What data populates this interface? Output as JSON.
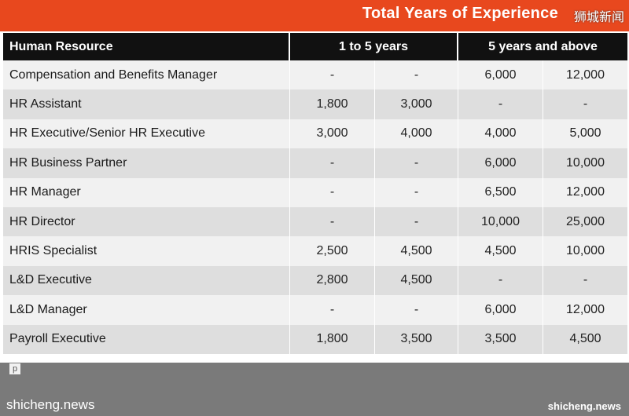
{
  "banner": {
    "title": "Total Years of Experience",
    "watermark": "狮城新闻"
  },
  "table": {
    "headers": [
      "Human Resource",
      "1 to 5 years",
      "5 years and above"
    ],
    "rows": [
      {
        "role": "Compensation and Benefits Manager",
        "v": [
          "-",
          "-",
          "6,000",
          "12,000"
        ]
      },
      {
        "role": "HR Assistant",
        "v": [
          "1,800",
          "3,000",
          "-",
          "-"
        ]
      },
      {
        "role": "HR Executive/Senior HR Executive",
        "v": [
          "3,000",
          "4,000",
          "4,000",
          "5,000"
        ]
      },
      {
        "role": "HR Business Partner",
        "v": [
          "-",
          "-",
          "6,000",
          "10,000"
        ]
      },
      {
        "role": "HR Manager",
        "v": [
          "-",
          "-",
          "6,500",
          "12,000"
        ]
      },
      {
        "role": "HR Director",
        "v": [
          "-",
          "-",
          "10,000",
          "25,000"
        ]
      },
      {
        "role": "HRIS Specialist",
        "v": [
          "2,500",
          "4,500",
          "4,500",
          "10,000"
        ]
      },
      {
        "role": "L&D Executive",
        "v": [
          "2,800",
          "4,500",
          "-",
          "-"
        ]
      },
      {
        "role": "L&D Manager",
        "v": [
          "-",
          "-",
          "6,000",
          "12,000"
        ]
      },
      {
        "role": "Payroll Executive",
        "v": [
          "1,800",
          "3,500",
          "3,500",
          "4,500"
        ]
      }
    ]
  },
  "footer": {
    "left": "shicheng.news",
    "right": "shicheng.news",
    "cut": "p"
  }
}
